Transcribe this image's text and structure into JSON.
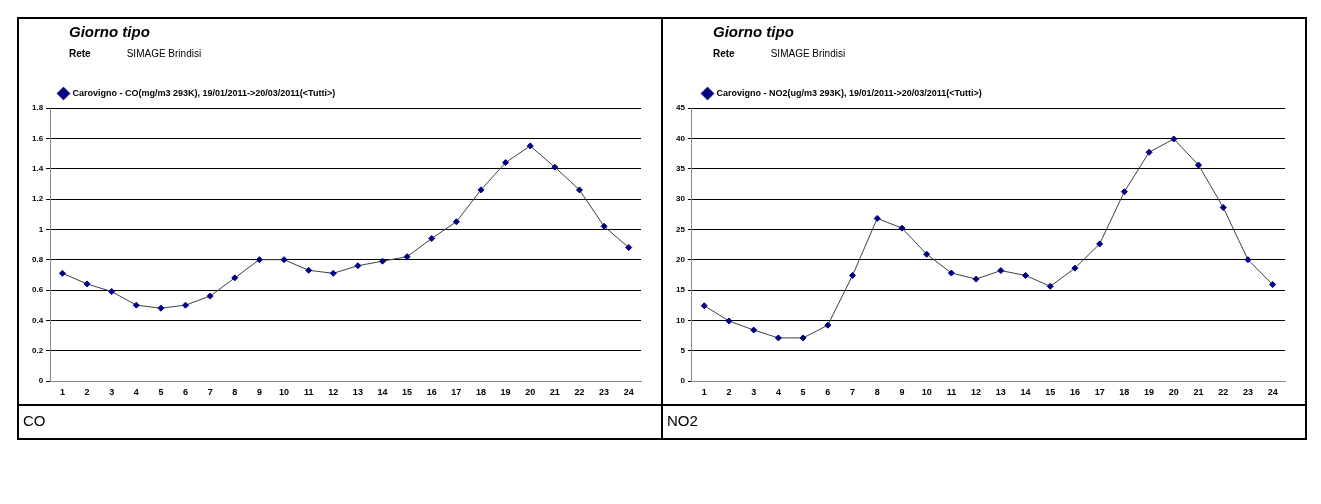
{
  "chart_data": [
    {
      "type": "line",
      "title": "Giorno tipo",
      "subtitle": "Rete SIMAGE Brindisi",
      "annotations": [
        "CO"
      ],
      "categories": [
        "1",
        "2",
        "3",
        "4",
        "5",
        "6",
        "7",
        "8",
        "9",
        "10",
        "11",
        "12",
        "13",
        "14",
        "15",
        "16",
        "17",
        "18",
        "19",
        "20",
        "21",
        "22",
        "23",
        "24"
      ],
      "series": [
        {
          "name": "Carovigno - CO(mg/m3 293K), 19/01/2011->20/03/2011(<Tutti>)",
          "color": "#000080",
          "values": [
            0.71,
            0.64,
            0.59,
            0.5,
            0.48,
            0.5,
            0.56,
            0.68,
            0.8,
            0.8,
            0.73,
            0.71,
            0.76,
            0.79,
            0.82,
            0.94,
            1.05,
            1.26,
            1.44,
            1.55,
            1.41,
            1.26,
            1.02,
            0.88
          ]
        }
      ],
      "ylim": [
        0,
        1.8
      ],
      "yticks": [
        0,
        0.2,
        0.4,
        0.6,
        0.8,
        1,
        1.2,
        1.4,
        1.6,
        1.8
      ],
      "grid": "y",
      "legend": "top",
      "marker": "diamond",
      "line_style": "solid"
    },
    {
      "type": "line",
      "title": "Giorno tipo",
      "subtitle": "Rete SIMAGE Brindisi",
      "annotations": [
        "NO2"
      ],
      "categories": [
        "1",
        "2",
        "3",
        "4",
        "5",
        "6",
        "7",
        "8",
        "9",
        "10",
        "11",
        "12",
        "13",
        "14",
        "15",
        "16",
        "17",
        "18",
        "19",
        "20",
        "21",
        "22",
        "23",
        "24"
      ],
      "series": [
        {
          "name": "Carovigno - NO2(ug/m3 293K), 19/01/2011->20/03/2011(<Tutti>)",
          "color": "#000080",
          "values": [
            12.4,
            9.9,
            8.4,
            7.1,
            7.1,
            9.2,
            17.4,
            26.8,
            25.2,
            20.9,
            17.8,
            16.8,
            18.2,
            17.4,
            15.6,
            18.6,
            22.6,
            31.2,
            37.7,
            39.9,
            35.6,
            28.6,
            20,
            15.9
          ]
        }
      ],
      "ylim": [
        0,
        45
      ],
      "yticks": [
        0,
        5,
        10,
        15,
        20,
        25,
        30,
        35,
        40,
        45
      ],
      "grid": "y",
      "legend": "top",
      "marker": "diamond",
      "line_style": "solid"
    }
  ]
}
